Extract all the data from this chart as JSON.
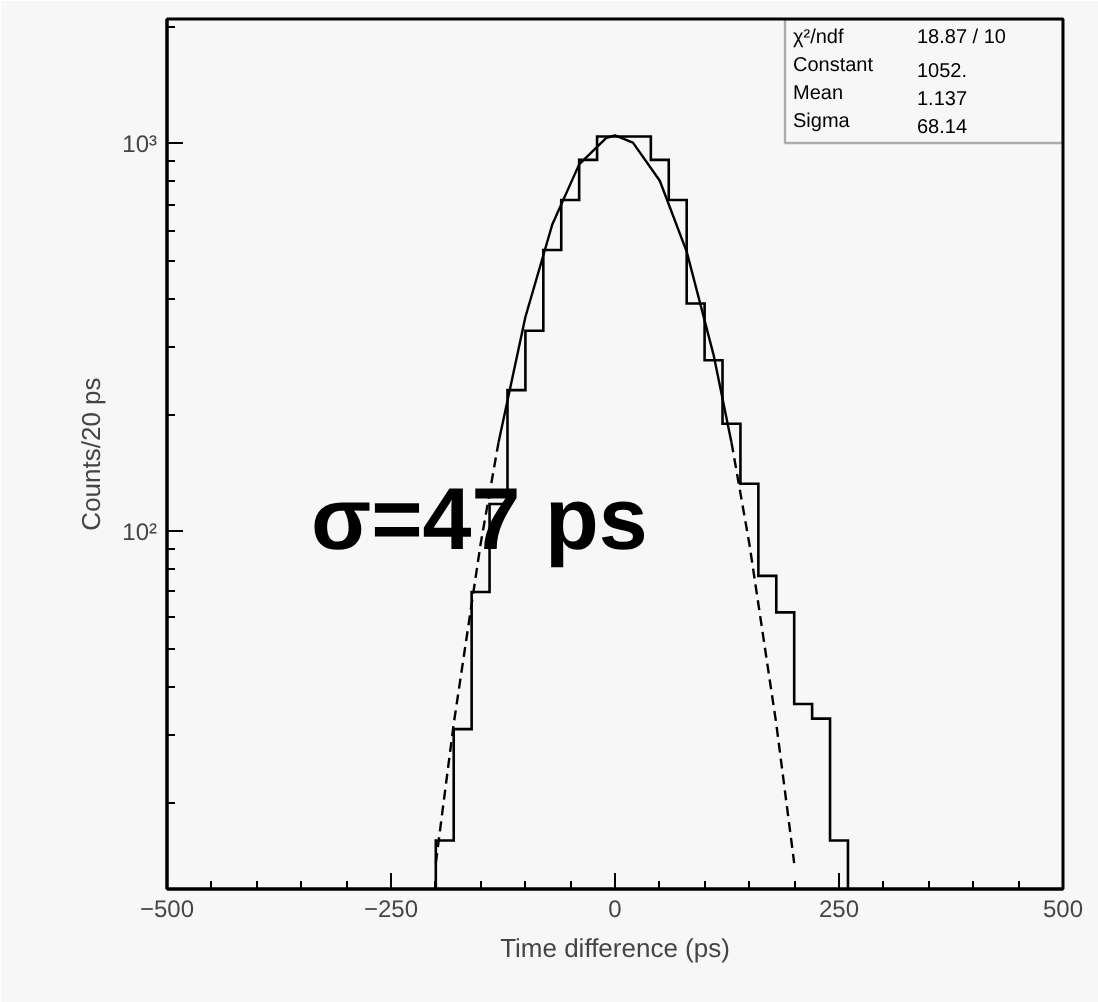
{
  "chart_data": {
    "type": "histogram",
    "xlabel": "Time difference (ps)",
    "ylabel": "Counts/20 ps",
    "bins": [
      -200,
      -180,
      -160,
      -140,
      -120,
      -100,
      -80,
      -60,
      -40,
      -20,
      0,
      20,
      40,
      60,
      80,
      100,
      120,
      140,
      160,
      180,
      200,
      220,
      240,
      260
    ],
    "values": [
      16,
      31,
      70,
      118,
      232,
      330,
      533,
      717,
      910,
      1045,
      1045,
      1045,
      910,
      717,
      388,
      277,
      190,
      133,
      77,
      62,
      36,
      33,
      16
    ],
    "color": "#000000",
    "series": [
      {
        "type": "line",
        "line_style": "dashed",
        "color": "#000000",
        "x": [
          -200,
          -180,
          -150,
          -130
        ],
        "values": [
          14,
          32,
          93,
          170
        ]
      },
      {
        "type": "line",
        "line_style": "dashed",
        "color": "#000000",
        "x": [
          130,
          150,
          180,
          200
        ],
        "values": [
          170,
          93,
          32,
          14
        ]
      },
      {
        "type": "line",
        "line_style": "solid",
        "color": "#000000",
        "x": [
          -130,
          -100,
          -70,
          -40,
          -10,
          0,
          20,
          50,
          80,
          110,
          130
        ],
        "values": [
          170,
          358,
          620,
          886,
          1036,
          1052,
          1008,
          804,
          528,
          286,
          170
        ]
      }
    ],
    "log": "y",
    "grid": false,
    "xlim": [
      -500,
      500
    ],
    "xticks": [
      -500,
      -250,
      0,
      250,
      500
    ],
    "ylim": [
      12,
      2100
    ],
    "yticks": [
      {
        "value": 100,
        "label": "10²"
      },
      {
        "value": 1000,
        "label": "10³"
      }
    ],
    "annotations": [
      "χ²/ndf 18.87 / 10",
      "Constant 1052.",
      "Mean 1.137",
      "Sigma 68.14",
      "σ=47 ps"
    ]
  }
}
